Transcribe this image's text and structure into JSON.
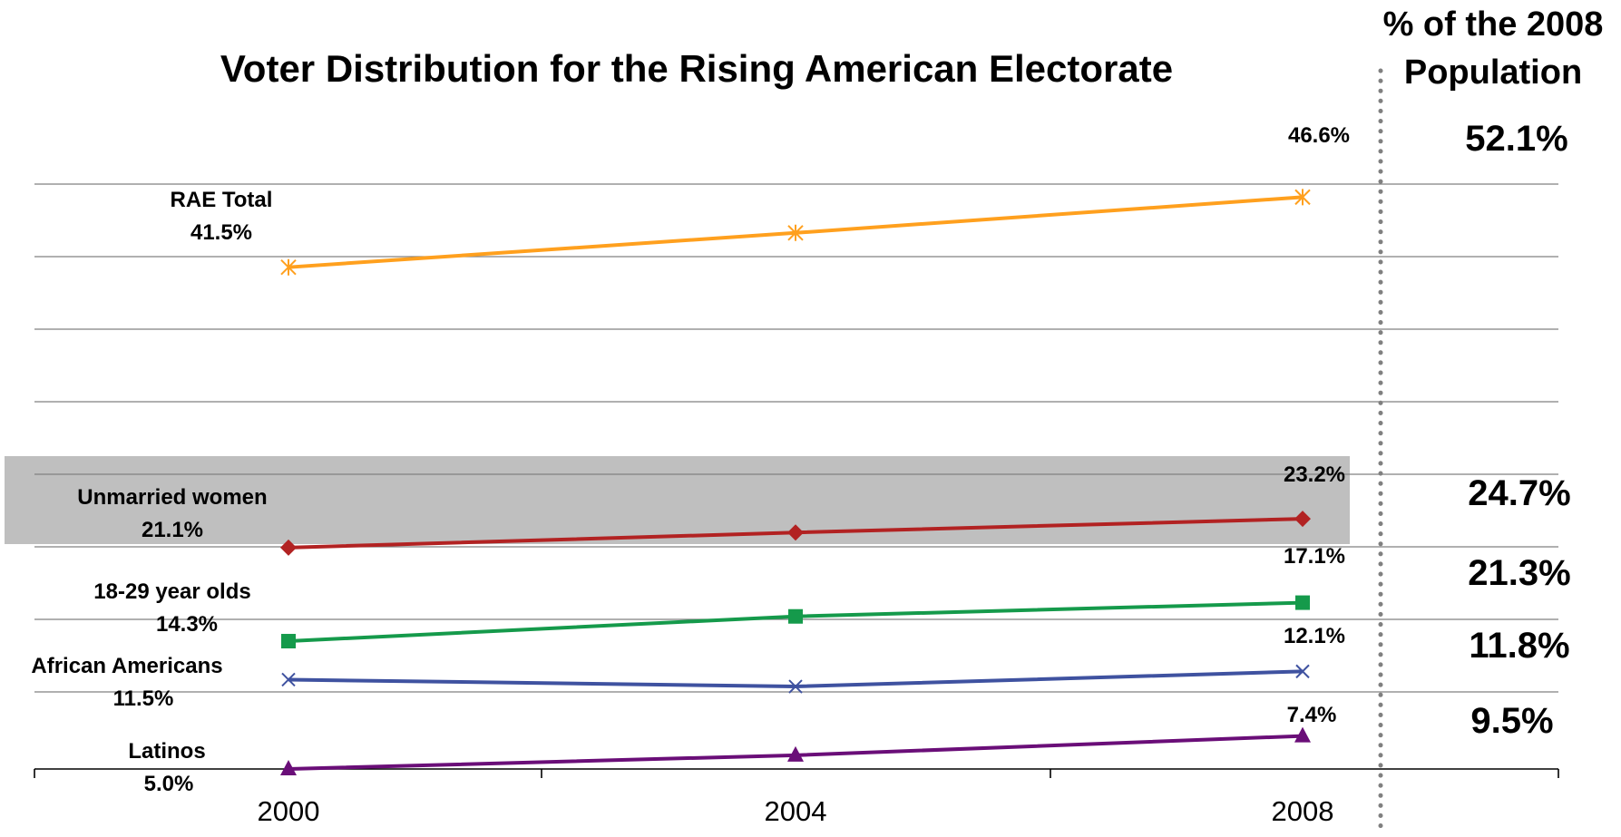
{
  "chart_data": {
    "type": "line",
    "title": "Voter Distribution for the Rising American Electorate",
    "categories": [
      "2000",
      "2004",
      "2008"
    ],
    "ylim": [
      5.0,
      52.1
    ],
    "grid": true,
    "series": [
      {
        "name": "RAE Total",
        "color": "#FFA01E",
        "marker": "asterisk",
        "values": [
          41.5,
          44.0,
          46.6
        ],
        "start_label": "41.5%",
        "end_label": "46.6%",
        "pop_2008": "52.1%"
      },
      {
        "name": "Unmarried women",
        "color": "#B22222",
        "marker": "diamond",
        "values": [
          21.1,
          22.2,
          23.2
        ],
        "start_label": "21.1%",
        "end_label": "23.2%",
        "pop_2008": "24.7%",
        "highlight": true
      },
      {
        "name": "18-29 year olds",
        "color": "#159A4B",
        "marker": "square",
        "values": [
          14.3,
          16.1,
          17.1
        ],
        "start_label": "14.3%",
        "end_label": "17.1%",
        "pop_2008": "21.3%"
      },
      {
        "name": "African Americans",
        "color": "#3F52A0",
        "marker": "x",
        "values": [
          11.5,
          11.0,
          12.1
        ],
        "start_label": "11.5%",
        "end_label": "12.1%",
        "pop_2008": "11.8%"
      },
      {
        "name": "Latinos",
        "color": "#6A0E78",
        "marker": "triangle",
        "values": [
          5.0,
          6.0,
          7.4
        ],
        "start_label": "5.0%",
        "end_label": "7.4%",
        "pop_2008": "9.5%"
      }
    ],
    "side_header": [
      "% of the 2008",
      "Population"
    ]
  }
}
